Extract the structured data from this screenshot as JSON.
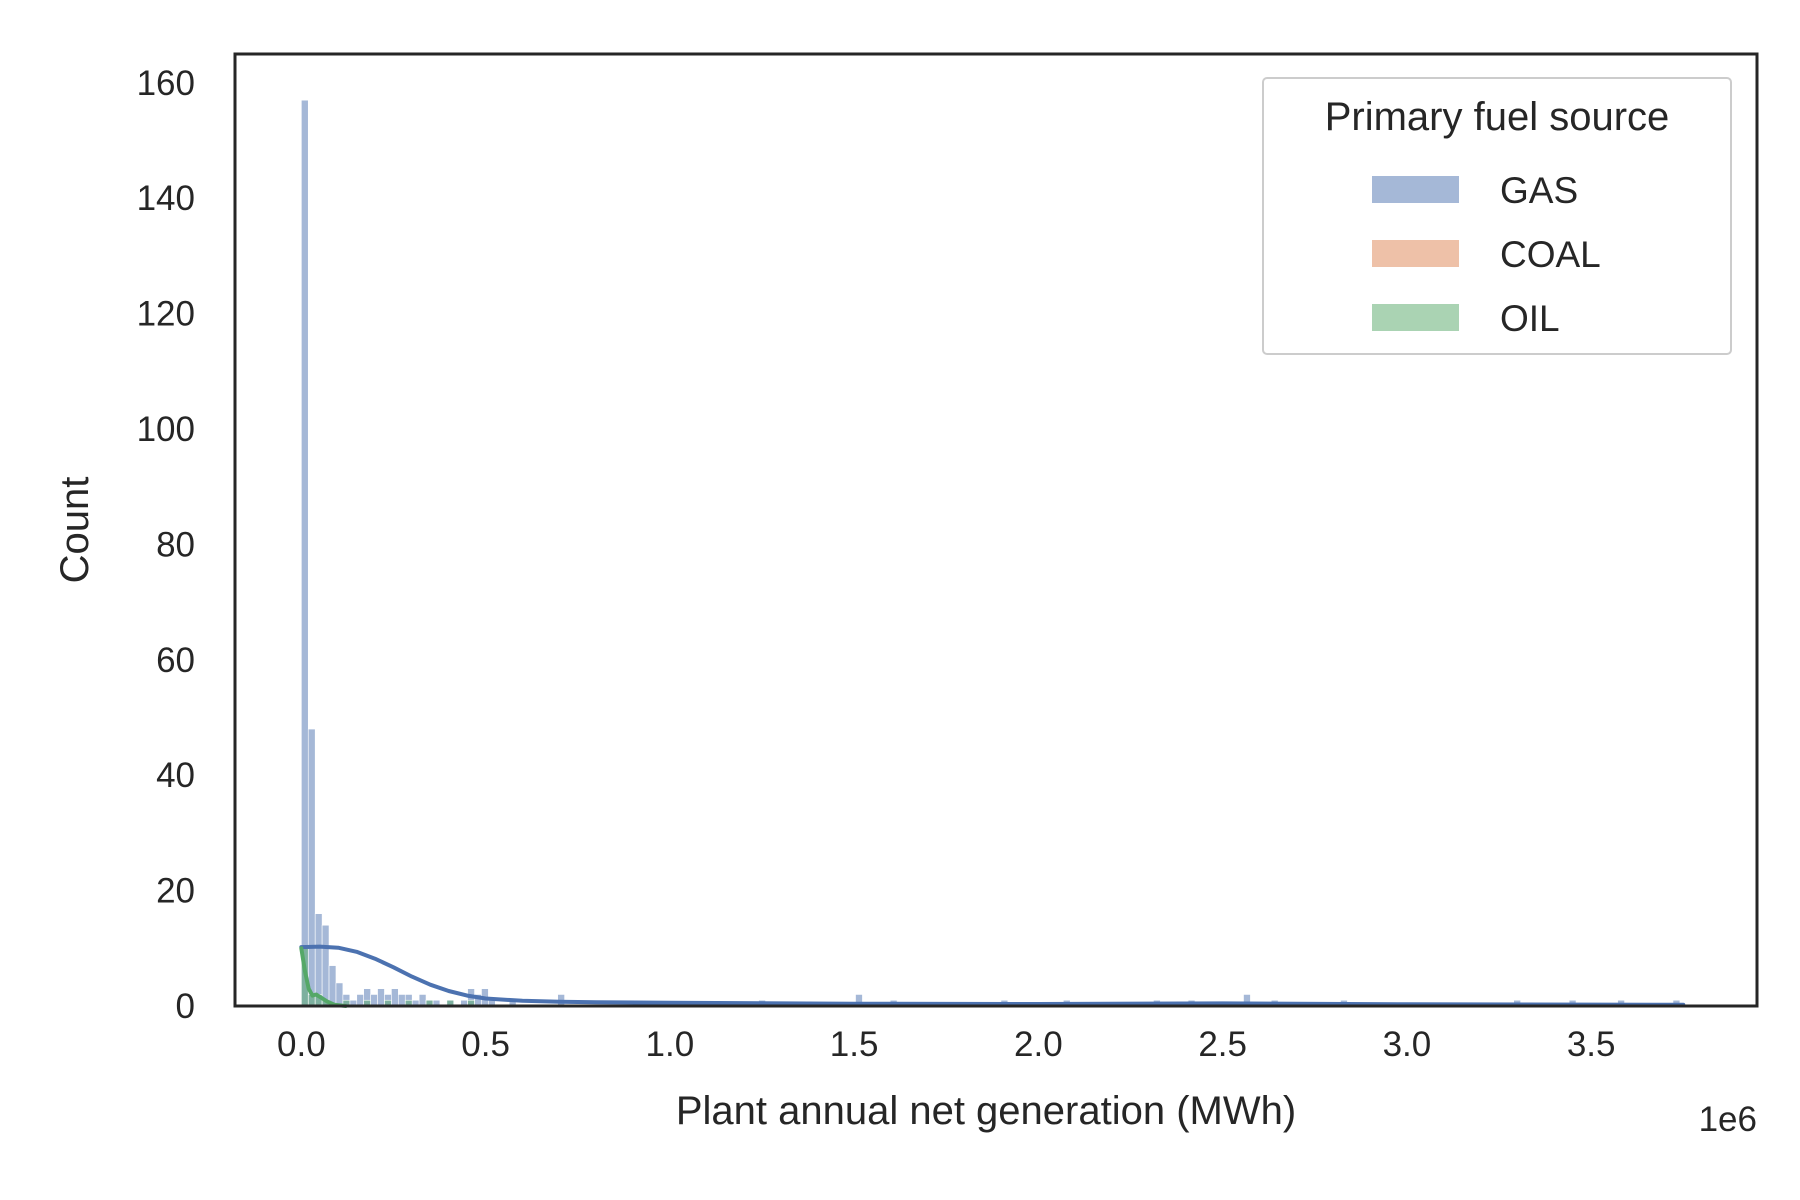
{
  "chart_data": {
    "type": "histogram",
    "xlabel": "Plant annual net generation (MWh)",
    "ylabel": "Count",
    "x_offset_label": "1e6",
    "xlim": [
      -0.18,
      3.95
    ],
    "ylim": [
      0,
      165
    ],
    "x_ticks": [
      0.0,
      0.5,
      1.0,
      1.5,
      2.0,
      2.5,
      3.0,
      3.5
    ],
    "x_tick_labels": [
      "0.0",
      "0.5",
      "1.0",
      "1.5",
      "2.0",
      "2.5",
      "3.0",
      "3.5"
    ],
    "y_ticks": [
      0,
      20,
      40,
      60,
      80,
      100,
      120,
      140,
      160
    ],
    "y_tick_labels": [
      "0",
      "20",
      "40",
      "60",
      "80",
      "100",
      "120",
      "140",
      "160"
    ],
    "bin_width": 0.0188,
    "grid": false,
    "legend": {
      "title": "Primary fuel source",
      "placement": "upper-right",
      "entries": [
        "GAS",
        "COAL",
        "OIL"
      ]
    },
    "series": [
      {
        "name": "GAS",
        "color": "#4c72b0",
        "bins": [
          [
            0.0,
            157
          ],
          [
            0.0188,
            48
          ],
          [
            0.0376,
            16
          ],
          [
            0.0564,
            14
          ],
          [
            0.0752,
            7
          ],
          [
            0.094,
            4
          ],
          [
            0.1128,
            2
          ],
          [
            0.1316,
            1
          ],
          [
            0.1504,
            2
          ],
          [
            0.1692,
            3
          ],
          [
            0.188,
            2
          ],
          [
            0.2068,
            3
          ],
          [
            0.2256,
            2
          ],
          [
            0.2444,
            3
          ],
          [
            0.2632,
            2
          ],
          [
            0.282,
            2
          ],
          [
            0.3008,
            1
          ],
          [
            0.3196,
            2
          ],
          [
            0.3384,
            1
          ],
          [
            0.3572,
            1
          ],
          [
            0.3948,
            1
          ],
          [
            0.4324,
            1
          ],
          [
            0.4512,
            3
          ],
          [
            0.47,
            2
          ],
          [
            0.4888,
            3
          ],
          [
            0.5076,
            1
          ],
          [
            0.564,
            1
          ],
          [
            0.6956,
            2
          ],
          [
            1.2408,
            1
          ],
          [
            1.5038,
            2
          ],
          [
            1.5978,
            1
          ],
          [
            1.8984,
            1
          ],
          [
            2.0676,
            1
          ],
          [
            2.3122,
            1
          ],
          [
            2.4062,
            1
          ],
          [
            2.5566,
            2
          ],
          [
            2.6318,
            1
          ],
          [
            2.8198,
            1
          ],
          [
            3.2898,
            1
          ],
          [
            3.4402,
            1
          ],
          [
            3.5718,
            1
          ],
          [
            3.722,
            1
          ]
        ],
        "kde": [
          [
            0.0,
            10.2
          ],
          [
            0.05,
            10.3
          ],
          [
            0.1,
            10.1
          ],
          [
            0.15,
            9.4
          ],
          [
            0.2,
            8.2
          ],
          [
            0.25,
            6.7
          ],
          [
            0.3,
            5.1
          ],
          [
            0.35,
            3.7
          ],
          [
            0.4,
            2.6
          ],
          [
            0.45,
            1.8
          ],
          [
            0.5,
            1.3
          ],
          [
            0.6,
            0.9
          ],
          [
            0.7,
            0.75
          ],
          [
            0.8,
            0.65
          ],
          [
            1.0,
            0.55
          ],
          [
            1.5,
            0.4
          ],
          [
            2.0,
            0.35
          ],
          [
            2.5,
            0.45
          ],
          [
            3.0,
            0.3
          ],
          [
            3.5,
            0.25
          ],
          [
            3.75,
            0.2
          ]
        ]
      },
      {
        "name": "COAL",
        "color": "#dd8452",
        "bins": [],
        "kde": []
      },
      {
        "name": "OIL",
        "color": "#55a868",
        "bins": [
          [
            0.0,
            10
          ],
          [
            0.0188,
            2
          ],
          [
            0.0376,
            2
          ],
          [
            0.0564,
            1
          ],
          [
            0.1128,
            1
          ],
          [
            0.1692,
            1
          ],
          [
            0.2256,
            1
          ],
          [
            0.282,
            1
          ],
          [
            0.3384,
            1
          ],
          [
            0.3948,
            1
          ],
          [
            0.4512,
            1
          ]
        ],
        "kde": [
          [
            0.0,
            10.0
          ],
          [
            0.01,
            6.0
          ],
          [
            0.02,
            3.0
          ],
          [
            0.03,
            1.8
          ],
          [
            0.04,
            2.0
          ],
          [
            0.05,
            1.6
          ],
          [
            0.07,
            0.8
          ],
          [
            0.09,
            0.2
          ],
          [
            0.12,
            0.0
          ]
        ]
      }
    ]
  }
}
